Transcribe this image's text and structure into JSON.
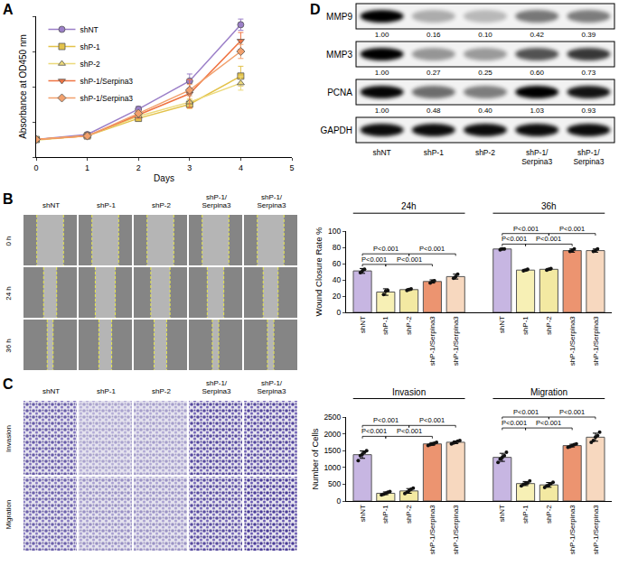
{
  "panel_labels": [
    "A",
    "B",
    "C",
    "D"
  ],
  "chart_data": [
    {
      "type": "line",
      "x_label": "Days",
      "y_label": "Absorbance at OD450 nm",
      "x": [
        0,
        1,
        2,
        3,
        4
      ],
      "xlim": [
        0,
        5
      ],
      "xticks": [
        0,
        1,
        2,
        3,
        4,
        5
      ],
      "ylim": [
        0,
        2
      ],
      "yticks": [
        0,
        0.5,
        1,
        1.5,
        2
      ],
      "tick_labels": "x",
      "legend": "top left",
      "series": [
        {
          "name": "shNT",
          "color": "#9b7fc8",
          "marker": "circle",
          "values": [
            0.25,
            0.32,
            0.68,
            1.08,
            1.88
          ],
          "errors": [
            0.02,
            0.03,
            0.04,
            0.1,
            0.08
          ]
        },
        {
          "name": "shP-1",
          "color": "#e3c24a",
          "marker": "square",
          "values": [
            0.25,
            0.3,
            0.55,
            0.75,
            1.15
          ],
          "errors": [
            0.02,
            0.02,
            0.04,
            0.06,
            0.14
          ]
        },
        {
          "name": "shP-2",
          "color": "#ecd97a",
          "marker": "triangle-up",
          "values": [
            0.24,
            0.3,
            0.58,
            0.78,
            1.05
          ],
          "errors": [
            0.02,
            0.02,
            0.03,
            0.05,
            0.1
          ]
        },
        {
          "name": "shP-1/Serpina3",
          "color": "#ef7443",
          "marker": "triangle-down",
          "values": [
            0.25,
            0.3,
            0.6,
            0.9,
            1.65
          ],
          "errors": [
            0.02,
            0.03,
            0.05,
            0.2,
            0.12
          ]
        },
        {
          "name": "shP-1/Serpina3",
          "color": "#f2a06c",
          "marker": "diamond",
          "values": [
            0.25,
            0.3,
            0.62,
            0.95,
            1.5
          ],
          "errors": [
            0.02,
            0.02,
            0.04,
            0.08,
            0.1
          ]
        }
      ]
    },
    {
      "type": "bar",
      "y_label": "Wound Closure Rate %",
      "categories": [
        "shNT",
        "shP-1",
        "shP-2",
        "shP-1/Serpina3",
        "shP-1/Serpina3"
      ],
      "colors": [
        "#c7b6e2",
        "#f7f0b5",
        "#f3e9a2",
        "#ec9470",
        "#f7d8bf"
      ],
      "ylim": [
        0,
        100
      ],
      "yticks": [
        0,
        20,
        40,
        60,
        80,
        100
      ],
      "series": [
        {
          "name": "24h",
          "values": [
            51,
            25,
            28,
            38,
            44
          ],
          "errors": [
            3,
            4,
            1,
            2,
            3
          ],
          "points": [
            [
              49,
              51,
              53
            ],
            [
              22,
              26,
              27
            ],
            [
              27,
              28,
              29
            ],
            [
              36,
              38,
              39
            ],
            [
              42,
              44,
              47
            ]
          ]
        },
        {
          "name": "36h",
          "values": [
            78,
            52,
            53,
            76,
            76
          ],
          "errors": [
            1,
            1,
            1,
            2,
            2
          ],
          "points": [
            [
              77,
              78,
              78
            ],
            [
              51,
              52,
              53
            ],
            [
              52,
              53,
              54
            ],
            [
              75,
              76,
              78
            ],
            [
              75,
              76,
              78
            ]
          ]
        }
      ],
      "comparisons": [
        {
          "group": 0,
          "from": 0,
          "to": 1,
          "label": "P<0.001"
        },
        {
          "group": 0,
          "from": 0,
          "to": 2,
          "label": "P<0.001"
        },
        {
          "group": 0,
          "from": 1,
          "to": 3,
          "label": "P<0.001"
        },
        {
          "group": 0,
          "from": 2,
          "to": 4,
          "label": "P<0.001"
        },
        {
          "group": 1,
          "from": 0,
          "to": 1,
          "label": "P<0.001"
        },
        {
          "group": 1,
          "from": 0,
          "to": 2,
          "label": "P<0.001"
        },
        {
          "group": 1,
          "from": 1,
          "to": 3,
          "label": "P<0.001"
        },
        {
          "group": 1,
          "from": 2,
          "to": 4,
          "label": "P<0.001"
        }
      ]
    },
    {
      "type": "bar",
      "y_label": "Number of Cells",
      "categories": [
        "shNT",
        "shP-1",
        "shP-2",
        "shP-1/Serpina3",
        "shP-1/Serpina3"
      ],
      "colors": [
        "#c7b6e2",
        "#f7f0b5",
        "#f3e9a2",
        "#ec9470",
        "#f7d8bf"
      ],
      "ylim": [
        0,
        2500
      ],
      "yticks": [
        0,
        500,
        1000,
        1500,
        2000,
        2500
      ],
      "series": [
        {
          "name": "Invasion",
          "values": [
            1380,
            230,
            300,
            1700,
            1750
          ],
          "errors": [
            110,
            40,
            70,
            40,
            40
          ],
          "points": [
            [
              1200,
              1350,
              1400,
              1450,
              1500
            ],
            [
              180,
              200,
              230,
              260,
              280
            ],
            [
              220,
              260,
              300,
              350,
              380
            ],
            [
              1650,
              1680,
              1700,
              1720,
              1750
            ],
            [
              1700,
              1730,
              1750,
              1780,
              1800
            ]
          ]
        },
        {
          "name": "Migration",
          "values": [
            1300,
            520,
            480,
            1650,
            1900
          ],
          "errors": [
            120,
            60,
            70,
            40,
            120
          ],
          "points": [
            [
              1150,
              1250,
              1300,
              1350,
              1450
            ],
            [
              450,
              500,
              520,
              540,
              600
            ],
            [
              400,
              450,
              480,
              520,
              560
            ],
            [
              1600,
              1620,
              1650,
              1680,
              1700
            ],
            [
              1750,
              1800,
              1900,
              1950,
              2050
            ]
          ]
        }
      ],
      "comparisons": [
        {
          "group": 0,
          "from": 0,
          "to": 1,
          "label": "P<0.001"
        },
        {
          "group": 0,
          "from": 0,
          "to": 2,
          "label": "P<0.001"
        },
        {
          "group": 0,
          "from": 1,
          "to": 3,
          "label": "P<0.001"
        },
        {
          "group": 0,
          "from": 2,
          "to": 4,
          "label": "P<0.001"
        },
        {
          "group": 1,
          "from": 0,
          "to": 1,
          "label": "P<0.001"
        },
        {
          "group": 1,
          "from": 0,
          "to": 2,
          "label": "P<0.001"
        },
        {
          "group": 1,
          "from": 1,
          "to": 3,
          "label": "P<0.001"
        },
        {
          "group": 1,
          "from": 2,
          "to": 4,
          "label": "P<0.001"
        }
      ]
    }
  ],
  "wound_images": {
    "columns": [
      "shNT",
      "shP-1",
      "shP-2",
      "shP-1/Serpina3",
      "shP-1/Serpina3"
    ],
    "rows": [
      "0 h",
      "24 h",
      "36 h"
    ]
  },
  "transwell_images": {
    "columns": [
      "shNT",
      "shP-1",
      "shP-2",
      "shP-1/Serpina3",
      "shP-1/Serpina3"
    ],
    "rows": [
      "Invasion",
      "Migration"
    ]
  },
  "western_blot": {
    "lanes": [
      "shNT",
      "shP-1",
      "shP-2",
      "shP-1/Serpina3",
      "shP-1/Serpina3"
    ],
    "proteins": [
      {
        "name": "MMP9",
        "values": [
          1,
          0.16,
          0.1,
          0.42,
          0.39
        ],
        "value_labels": [
          "1.00",
          "0.16",
          "0.10",
          "0.42",
          "0.39"
        ]
      },
      {
        "name": "MMP3",
        "values": [
          1,
          0.27,
          0.25,
          0.6,
          0.73
        ],
        "value_labels": [
          "1.00",
          "0.27",
          "0.25",
          "0.60",
          "0.73"
        ]
      },
      {
        "name": "PCNA",
        "values": [
          1,
          0.48,
          0.4,
          1.03,
          0.93
        ],
        "value_labels": [
          "1.00",
          "0.48",
          "0.40",
          "1.03",
          "0.93"
        ]
      },
      {
        "name": "GAPDH"
      }
    ]
  }
}
